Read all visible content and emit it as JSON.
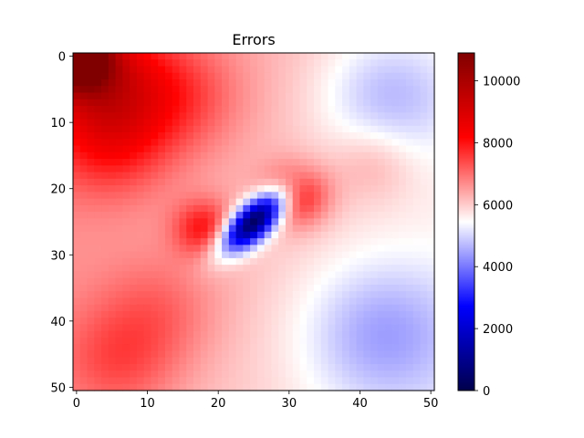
{
  "chart_data": {
    "type": "heatmap",
    "title": "Errors",
    "xlabel": "",
    "ylabel": "",
    "grid_size": [
      51,
      51
    ],
    "xlim": [
      -0.5,
      50.5
    ],
    "ylim": [
      50.5,
      -0.5
    ],
    "x_ticks": [
      0,
      10,
      20,
      30,
      40,
      50
    ],
    "y_ticks": [
      0,
      10,
      20,
      30,
      40,
      50
    ],
    "colormap": "seismic",
    "colormap_stops": [
      "#00004c",
      "#0000ff",
      "#ffffff",
      "#ff0000",
      "#800000"
    ],
    "vmin": 0,
    "vmax": 10900,
    "colorbar_ticks": [
      0,
      2000,
      4000,
      6000,
      8000,
      10000
    ],
    "base_value": 6300,
    "field": [
      {
        "feature": "top-left corner maximum",
        "x": 0,
        "y": 0,
        "value": 10900
      },
      {
        "feature": "upper-left red band",
        "x": 4,
        "y": 4,
        "value": 8400
      },
      {
        "feature": "upper red patch",
        "x": 15,
        "y": 6,
        "value": 7300
      },
      {
        "feature": "left red band",
        "x": 5,
        "y": 13,
        "value": 7600
      },
      {
        "feature": "central minimum (blue trough)",
        "x": 25,
        "y": 25,
        "value": 300
      },
      {
        "feature": "red lobe right of trough",
        "x": 31,
        "y": 21,
        "value": 8300
      },
      {
        "feature": "red lobe left of trough",
        "x": 18,
        "y": 26,
        "value": 8000
      },
      {
        "feature": "light blue region upper-right",
        "x": 44,
        "y": 6,
        "value": 5100
      },
      {
        "feature": "light blue region lower-right",
        "x": 43,
        "y": 42,
        "value": 5000
      },
      {
        "feature": "red band lower-left",
        "x": 6,
        "y": 46,
        "value": 7300
      },
      {
        "feature": "red band left-middle",
        "x": 12,
        "y": 38,
        "value": 7000
      },
      {
        "feature": "red patch right-middle",
        "x": 42,
        "y": 16,
        "value": 6900
      }
    ]
  }
}
